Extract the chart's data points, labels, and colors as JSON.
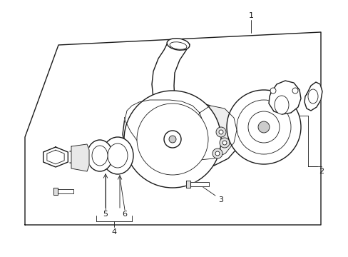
{
  "background_color": "#ffffff",
  "line_color": "#1a1a1a",
  "lw": 1.0,
  "tlw": 0.6,
  "label_fontsize": 8,
  "fig_width": 4.89,
  "fig_height": 3.6,
  "dpi": 100
}
